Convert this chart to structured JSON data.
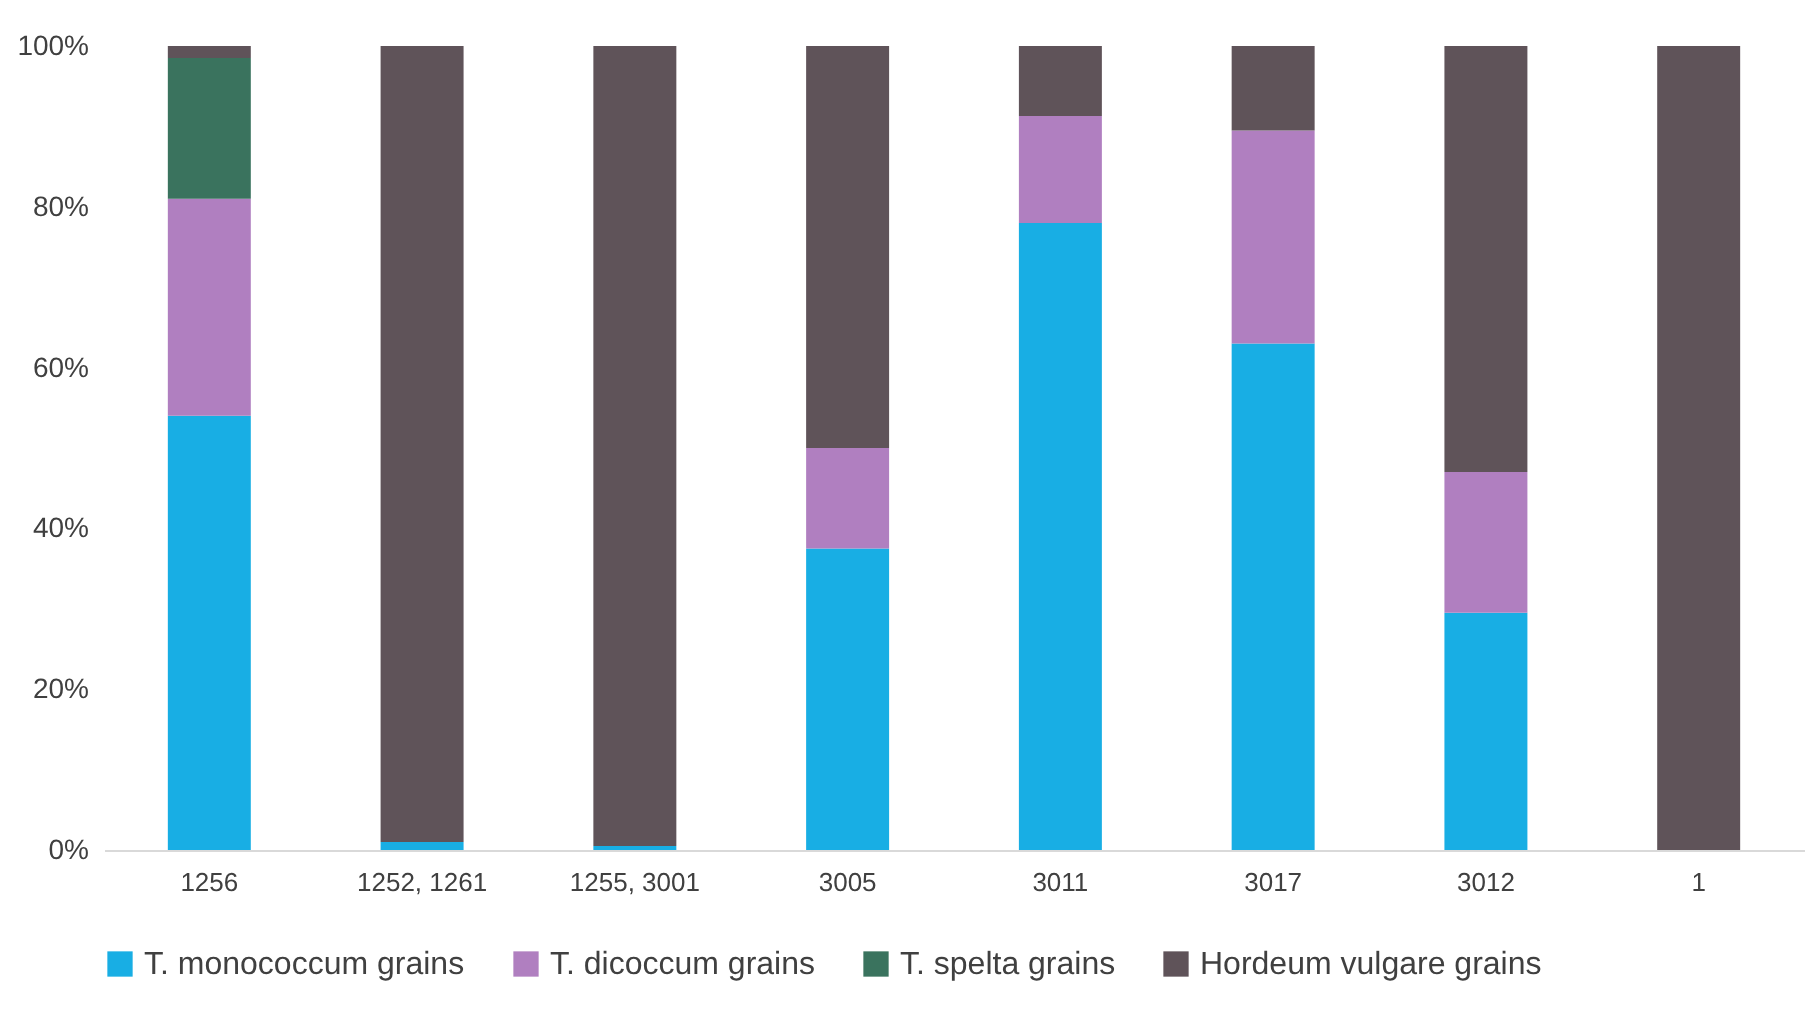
{
  "chart_data": {
    "type": "bar",
    "stacked": true,
    "categories": [
      "1256",
      "1252, 1261",
      "1255, 3001",
      "3005",
      "3011",
      "3017",
      "3012",
      "1"
    ],
    "series": [
      {
        "name": "T. monococcum grains",
        "color": "#18aee4",
        "values": [
          54,
          1,
          0.5,
          37.5,
          78,
          63,
          29.5,
          null
        ]
      },
      {
        "name": "T. dicoccum grains",
        "color": "#b07fc0",
        "values": [
          27,
          null,
          null,
          12.5,
          13.3,
          26.5,
          17.5,
          null
        ]
      },
      {
        "name": "T. spelta grains",
        "color": "#3a735e",
        "values": [
          17.5,
          null,
          null,
          null,
          null,
          null,
          null,
          null
        ]
      },
      {
        "name": "Hordeum vulgare grains",
        "color": "#5f5359",
        "values": [
          1.5,
          99,
          99.5,
          50,
          8.7,
          10.5,
          53,
          100
        ]
      }
    ],
    "ylim": [
      0,
      100
    ],
    "yticks": [
      {
        "value": 0,
        "label": "0%"
      },
      {
        "value": 20,
        "label": "20%"
      },
      {
        "value": 40,
        "label": "40%"
      },
      {
        "value": 60,
        "label": "60%"
      },
      {
        "value": 80,
        "label": "80%"
      },
      {
        "value": 100,
        "label": "100%"
      }
    ],
    "grid": false,
    "legend": "bottom"
  }
}
